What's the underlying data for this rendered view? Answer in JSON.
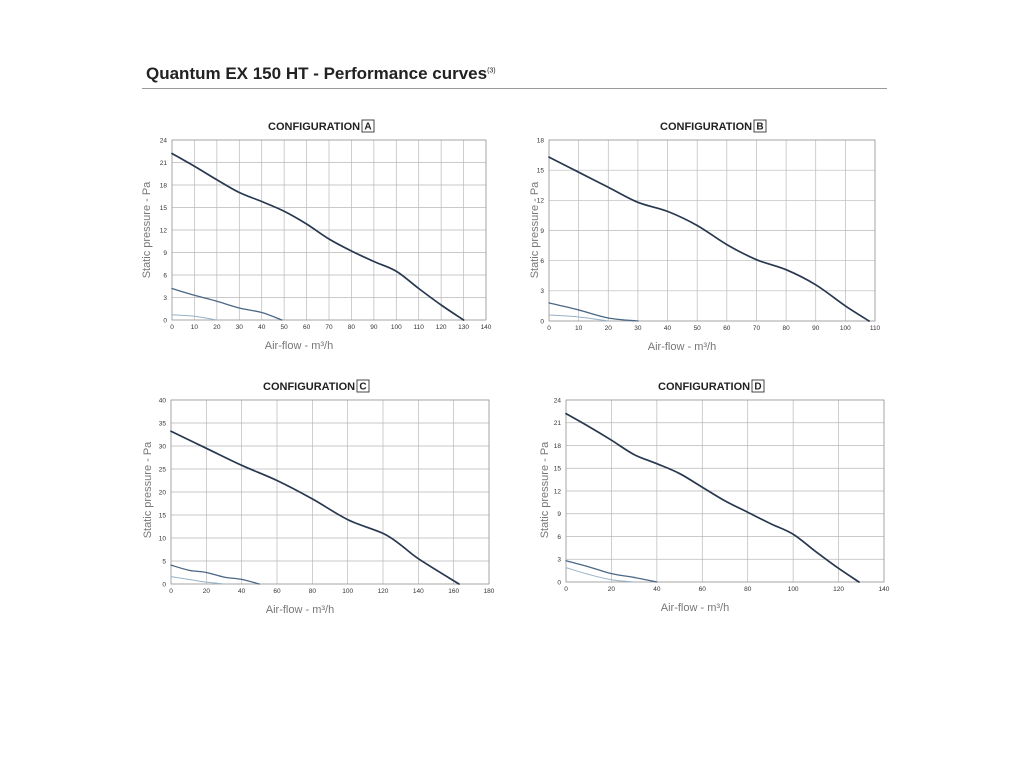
{
  "page": {
    "title": "Quantum EX 150 HT - Performance curves",
    "title_note": "(3)"
  },
  "colors": {
    "curve_main": "#27384f",
    "curve_mid": "#4a6784",
    "curve_light": "#97b1c7",
    "grid": "#b9b9b9",
    "text": "#222222"
  },
  "chart_data": [
    {
      "type": "line",
      "title": "CONFIGURATION",
      "config": "A",
      "xlabel": "Air-flow - m³/h",
      "ylabel": "Static pressure - Pa",
      "xlim": [
        0,
        140
      ],
      "ylim": [
        0,
        24
      ],
      "xticks": [
        0,
        10,
        20,
        30,
        40,
        50,
        60,
        70,
        80,
        90,
        100,
        110,
        120,
        130,
        140
      ],
      "yticks": [
        0,
        3,
        6,
        9,
        12,
        15,
        18,
        21,
        24
      ],
      "grid": true,
      "series": [
        {
          "x": [
            0,
            10,
            20,
            30,
            40,
            50,
            60,
            70,
            80,
            90,
            100,
            110,
            120,
            130
          ],
          "y": [
            22.2,
            20.5,
            18.7,
            17.0,
            15.8,
            14.5,
            12.8,
            10.8,
            9.2,
            7.8,
            6.5,
            4.2,
            2.0,
            0
          ]
        },
        {
          "x": [
            0,
            10,
            20,
            30,
            40,
            49
          ],
          "y": [
            4.2,
            3.3,
            2.5,
            1.6,
            1.0,
            0
          ]
        },
        {
          "x": [
            0,
            10,
            20
          ],
          "y": [
            0.7,
            0.5,
            0
          ]
        }
      ]
    },
    {
      "type": "line",
      "title": "CONFIGURATION",
      "config": "B",
      "xlabel": "Air-flow - m³/h",
      "ylabel": "Static pressure - Pa",
      "xlim": [
        0,
        110
      ],
      "ylim": [
        0,
        18
      ],
      "xticks": [
        0,
        10,
        20,
        30,
        40,
        50,
        60,
        70,
        80,
        90,
        100,
        110
      ],
      "yticks": [
        0,
        3,
        6,
        9,
        12,
        15,
        18
      ],
      "grid": true,
      "series": [
        {
          "x": [
            0,
            10,
            20,
            30,
            40,
            50,
            60,
            70,
            80,
            90,
            100,
            108
          ],
          "y": [
            16.3,
            14.8,
            13.3,
            11.8,
            10.9,
            9.5,
            7.6,
            6.1,
            5.1,
            3.6,
            1.5,
            0
          ]
        },
        {
          "x": [
            0,
            10,
            20,
            30
          ],
          "y": [
            1.8,
            1.1,
            0.3,
            0
          ]
        },
        {
          "x": [
            0,
            10,
            20
          ],
          "y": [
            0.6,
            0.4,
            0
          ]
        }
      ]
    },
    {
      "type": "line",
      "title": "CONFIGURATION",
      "config": "C",
      "xlabel": "Air-flow - m³/h",
      "ylabel": "Static pressure - Pa",
      "xlim": [
        0,
        180
      ],
      "ylim": [
        0,
        40
      ],
      "xticks": [
        0,
        20,
        40,
        60,
        80,
        100,
        120,
        140,
        160,
        180
      ],
      "yticks": [
        0,
        5,
        10,
        15,
        20,
        25,
        30,
        35,
        40
      ],
      "grid": true,
      "series": [
        {
          "x": [
            0,
            20,
            40,
            60,
            80,
            100,
            120,
            130,
            140,
            163
          ],
          "y": [
            33.2,
            29.5,
            25.8,
            22.5,
            18.5,
            14.0,
            11.0,
            8.5,
            5.5,
            0
          ]
        },
        {
          "x": [
            0,
            10,
            20,
            30,
            40,
            50
          ],
          "y": [
            4.1,
            3.0,
            2.5,
            1.5,
            1.0,
            0
          ]
        },
        {
          "x": [
            0,
            10,
            20,
            30
          ],
          "y": [
            1.6,
            1.0,
            0.4,
            0
          ]
        }
      ]
    },
    {
      "type": "line",
      "title": "CONFIGURATION",
      "config": "D",
      "xlabel": "Air-flow - m³/h",
      "ylabel": "Static pressure - Pa",
      "xlim": [
        0,
        140
      ],
      "ylim": [
        0,
        24
      ],
      "xticks": [
        0,
        20,
        40,
        60,
        80,
        100,
        120,
        140
      ],
      "yticks": [
        0,
        3,
        6,
        9,
        12,
        15,
        18,
        21,
        24
      ],
      "grid": true,
      "series": [
        {
          "x": [
            0,
            10,
            20,
            30,
            40,
            50,
            60,
            70,
            80,
            90,
            100,
            110,
            120,
            129
          ],
          "y": [
            22.2,
            20.5,
            18.7,
            16.8,
            15.6,
            14.3,
            12.5,
            10.7,
            9.2,
            7.7,
            6.3,
            4.0,
            1.8,
            0
          ]
        },
        {
          "x": [
            0,
            10,
            20,
            30,
            40
          ],
          "y": [
            2.8,
            2.0,
            1.1,
            0.6,
            0
          ]
        },
        {
          "x": [
            0,
            10,
            20,
            30
          ],
          "y": [
            1.9,
            1.0,
            0.3,
            0
          ]
        }
      ]
    }
  ]
}
